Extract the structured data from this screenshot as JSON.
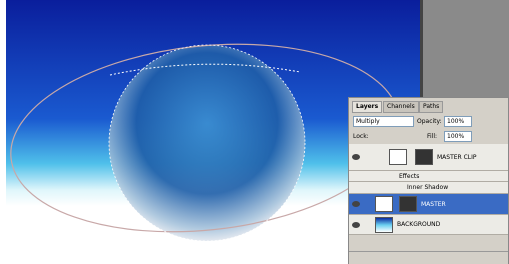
{
  "panel": {
    "tabs": [
      "Layers",
      "Channels",
      "Paths"
    ],
    "blend_mode": "Multiply",
    "opacity_label": "Opacity:",
    "opacity": "100%",
    "lock_label": "Lock:",
    "fill_label": "Fill:",
    "fill": "100%",
    "layers": [
      "MASTER CLIP",
      "MASTER",
      "BACKGROUND"
    ],
    "effects_label": "Effects",
    "effect": "Inner Shadow"
  }
}
